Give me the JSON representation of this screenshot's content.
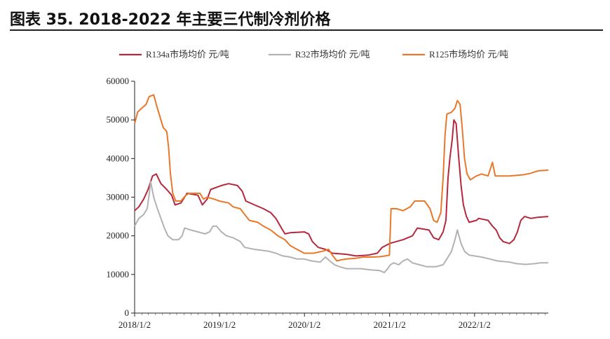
{
  "figure_title": "图表 35. 2018-2022 年主要三代制冷剂价格",
  "chart_data": {
    "type": "line",
    "xlim": [
      "2018-01-02",
      "2022-11-15"
    ],
    "ylim": [
      0,
      60000
    ],
    "yticks": [
      0,
      10000,
      20000,
      30000,
      40000,
      50000,
      60000
    ],
    "xticks": [
      {
        "label": "2018/1/2",
        "date": "2018-01-02"
      },
      {
        "label": "2019/1/2",
        "date": "2019-01-02"
      },
      {
        "label": "2020/1/2",
        "date": "2020-01-02"
      },
      {
        "label": "2021/1/2",
        "date": "2021-01-02"
      },
      {
        "label": "2022/1/2",
        "date": "2022-01-02"
      }
    ],
    "legend_position": "top",
    "grid": false,
    "series": [
      {
        "name": "R134a市场均价 元/吨",
        "color": "#b5283d",
        "points": [
          [
            "2018-01-02",
            26500
          ],
          [
            "2018-01-20",
            27500
          ],
          [
            "2018-02-10",
            29500
          ],
          [
            "2018-03-01",
            32000
          ],
          [
            "2018-03-20",
            35500
          ],
          [
            "2018-04-05",
            36000
          ],
          [
            "2018-04-25",
            33500
          ],
          [
            "2018-05-20",
            32000
          ],
          [
            "2018-06-10",
            30500
          ],
          [
            "2018-06-25",
            28000
          ],
          [
            "2018-07-20",
            28500
          ],
          [
            "2018-08-05",
            30000
          ],
          [
            "2018-08-15",
            31000
          ],
          [
            "2018-10-01",
            30500
          ],
          [
            "2018-10-20",
            28000
          ],
          [
            "2018-11-10",
            29500
          ],
          [
            "2018-11-25",
            32000
          ],
          [
            "2019-01-10",
            33000
          ],
          [
            "2019-02-10",
            33500
          ],
          [
            "2019-03-20",
            33000
          ],
          [
            "2019-04-10",
            31500
          ],
          [
            "2019-04-25",
            29000
          ],
          [
            "2019-06-01",
            28000
          ],
          [
            "2019-07-10",
            27000
          ],
          [
            "2019-08-10",
            26000
          ],
          [
            "2019-09-01",
            24500
          ],
          [
            "2019-09-25",
            22000
          ],
          [
            "2019-10-10",
            20500
          ],
          [
            "2019-11-01",
            20800
          ],
          [
            "2020-01-01",
            21000
          ],
          [
            "2020-01-20",
            20500
          ],
          [
            "2020-02-05",
            18500
          ],
          [
            "2020-03-01",
            17000
          ],
          [
            "2020-04-01",
            16500
          ],
          [
            "2020-05-01",
            15500
          ],
          [
            "2020-07-01",
            15200
          ],
          [
            "2020-08-10",
            14800
          ],
          [
            "2020-10-01",
            15000
          ],
          [
            "2020-11-10",
            15500
          ],
          [
            "2020-12-01",
            17000
          ],
          [
            "2021-01-01",
            18000
          ],
          [
            "2021-03-01",
            19000
          ],
          [
            "2021-04-10",
            20000
          ],
          [
            "2021-05-01",
            22000
          ],
          [
            "2021-06-20",
            21500
          ],
          [
            "2021-07-10",
            19500
          ],
          [
            "2021-08-01",
            19000
          ],
          [
            "2021-08-20",
            21000
          ],
          [
            "2021-09-01",
            24000
          ],
          [
            "2021-09-10",
            35000
          ],
          [
            "2021-09-18",
            40000
          ],
          [
            "2021-09-28",
            45000
          ],
          [
            "2021-10-05",
            50000
          ],
          [
            "2021-10-15",
            49000
          ],
          [
            "2021-10-25",
            41000
          ],
          [
            "2021-11-05",
            33000
          ],
          [
            "2021-11-15",
            28000
          ],
          [
            "2021-11-28",
            25000
          ],
          [
            "2021-12-10",
            23500
          ],
          [
            "2022-01-10",
            24000
          ],
          [
            "2022-01-20",
            24500
          ],
          [
            "2022-03-01",
            24000
          ],
          [
            "2022-03-20",
            22500
          ],
          [
            "2022-04-05",
            21500
          ],
          [
            "2022-04-20",
            19500
          ],
          [
            "2022-05-05",
            18500
          ],
          [
            "2022-06-01",
            18000
          ],
          [
            "2022-06-20",
            19000
          ],
          [
            "2022-07-05",
            21000
          ],
          [
            "2022-07-20",
            24000
          ],
          [
            "2022-08-05",
            25000
          ],
          [
            "2022-09-01",
            24500
          ],
          [
            "2022-10-01",
            24800
          ],
          [
            "2022-11-15",
            25000
          ]
        ]
      },
      {
        "name": "R32市场均价 元/吨",
        "color": "#b2b2b2",
        "points": [
          [
            "2018-01-02",
            22500
          ],
          [
            "2018-01-20",
            24500
          ],
          [
            "2018-02-10",
            25500
          ],
          [
            "2018-02-25",
            27000
          ],
          [
            "2018-03-05",
            30500
          ],
          [
            "2018-03-12",
            34000
          ],
          [
            "2018-03-25",
            30000
          ],
          [
            "2018-04-10",
            27000
          ],
          [
            "2018-04-25",
            24500
          ],
          [
            "2018-05-10",
            22000
          ],
          [
            "2018-05-25",
            20000
          ],
          [
            "2018-06-15",
            19000
          ],
          [
            "2018-07-10",
            19000
          ],
          [
            "2018-07-25",
            20000
          ],
          [
            "2018-08-05",
            22000
          ],
          [
            "2018-09-01",
            21500
          ],
          [
            "2018-10-01",
            21000
          ],
          [
            "2018-11-01",
            20500
          ],
          [
            "2018-11-20",
            21000
          ],
          [
            "2018-12-05",
            22500
          ],
          [
            "2018-12-20",
            22500
          ],
          [
            "2019-01-10",
            21000
          ],
          [
            "2019-02-01",
            20000
          ],
          [
            "2019-03-01",
            19500
          ],
          [
            "2019-04-01",
            18500
          ],
          [
            "2019-04-20",
            17000
          ],
          [
            "2019-06-01",
            16500
          ],
          [
            "2019-08-01",
            16000
          ],
          [
            "2019-09-01",
            15500
          ],
          [
            "2019-10-01",
            14800
          ],
          [
            "2019-11-01",
            14500
          ],
          [
            "2019-12-01",
            14000
          ],
          [
            "2020-01-01",
            14000
          ],
          [
            "2020-02-01",
            13500
          ],
          [
            "2020-03-10",
            13200
          ],
          [
            "2020-04-01",
            14500
          ],
          [
            "2020-04-20",
            13500
          ],
          [
            "2020-05-10",
            12500
          ],
          [
            "2020-06-01",
            12000
          ],
          [
            "2020-07-01",
            11500
          ],
          [
            "2020-09-01",
            11500
          ],
          [
            "2020-10-10",
            11200
          ],
          [
            "2020-11-20",
            11000
          ],
          [
            "2020-12-10",
            10500
          ],
          [
            "2020-12-25",
            11500
          ],
          [
            "2021-01-05",
            12500
          ],
          [
            "2021-01-20",
            13000
          ],
          [
            "2021-02-10",
            12500
          ],
          [
            "2021-03-01",
            13500
          ],
          [
            "2021-03-20",
            14000
          ],
          [
            "2021-04-10",
            13000
          ],
          [
            "2021-05-10",
            12500
          ],
          [
            "2021-06-10",
            12000
          ],
          [
            "2021-07-20",
            12000
          ],
          [
            "2021-08-20",
            12500
          ],
          [
            "2021-09-10",
            14500
          ],
          [
            "2021-09-25",
            16000
          ],
          [
            "2021-10-10",
            19000
          ],
          [
            "2021-10-20",
            21500
          ],
          [
            "2021-11-05",
            18000
          ],
          [
            "2021-11-20",
            16000
          ],
          [
            "2021-12-10",
            15000
          ],
          [
            "2022-02-01",
            14500
          ],
          [
            "2022-03-10",
            14000
          ],
          [
            "2022-04-10",
            13500
          ],
          [
            "2022-06-01",
            13200
          ],
          [
            "2022-07-01",
            12800
          ],
          [
            "2022-08-10",
            12600
          ],
          [
            "2022-09-20",
            12800
          ],
          [
            "2022-10-10",
            13000
          ],
          [
            "2022-11-15",
            13000
          ]
        ]
      },
      {
        "name": "R125市场均价 元/吨",
        "color": "#e8782a",
        "points": [
          [
            "2018-01-02",
            49000
          ],
          [
            "2018-01-15",
            52000
          ],
          [
            "2018-02-01",
            53000
          ],
          [
            "2018-02-20",
            54000
          ],
          [
            "2018-03-05",
            56000
          ],
          [
            "2018-03-25",
            56500
          ],
          [
            "2018-04-10",
            53000
          ],
          [
            "2018-04-25",
            50000
          ],
          [
            "2018-05-05",
            48000
          ],
          [
            "2018-05-20",
            47000
          ],
          [
            "2018-05-28",
            43000
          ],
          [
            "2018-06-05",
            36000
          ],
          [
            "2018-06-15",
            31000
          ],
          [
            "2018-06-28",
            29000
          ],
          [
            "2018-07-20",
            29000
          ],
          [
            "2018-08-10",
            30500
          ],
          [
            "2018-08-25",
            31000
          ],
          [
            "2018-10-10",
            31000
          ],
          [
            "2018-10-25",
            29500
          ],
          [
            "2018-11-10",
            30000
          ],
          [
            "2018-12-10",
            29500
          ],
          [
            "2019-01-01",
            29000
          ],
          [
            "2019-02-10",
            28500
          ],
          [
            "2019-03-01",
            27500
          ],
          [
            "2019-04-01",
            27000
          ],
          [
            "2019-04-20",
            25500
          ],
          [
            "2019-05-10",
            24000
          ],
          [
            "2019-06-15",
            23500
          ],
          [
            "2019-07-10",
            22500
          ],
          [
            "2019-08-10",
            21500
          ],
          [
            "2019-09-10",
            20000
          ],
          [
            "2019-10-10",
            19000
          ],
          [
            "2019-11-01",
            17500
          ],
          [
            "2019-12-01",
            16500
          ],
          [
            "2020-01-01",
            15500
          ],
          [
            "2020-02-10",
            15500
          ],
          [
            "2020-03-20",
            16000
          ],
          [
            "2020-04-15",
            16500
          ],
          [
            "2020-05-01",
            15000
          ],
          [
            "2020-05-20",
            13500
          ],
          [
            "2020-06-10",
            13800
          ],
          [
            "2020-07-01",
            14000
          ],
          [
            "2020-08-10",
            14200
          ],
          [
            "2020-09-10",
            14500
          ],
          [
            "2020-10-20",
            14500
          ],
          [
            "2020-11-20",
            14600
          ],
          [
            "2020-12-15",
            14800
          ],
          [
            "2021-01-01",
            15000
          ],
          [
            "2021-01-08",
            27000
          ],
          [
            "2021-02-01",
            27000
          ],
          [
            "2021-03-01",
            26500
          ],
          [
            "2021-04-01",
            27500
          ],
          [
            "2021-04-20",
            29000
          ],
          [
            "2021-06-01",
            29000
          ],
          [
            "2021-06-25",
            27000
          ],
          [
            "2021-07-10",
            24000
          ],
          [
            "2021-07-25",
            23500
          ],
          [
            "2021-08-10",
            26000
          ],
          [
            "2021-08-20",
            35000
          ],
          [
            "2021-08-28",
            46000
          ],
          [
            "2021-09-05",
            51500
          ],
          [
            "2021-09-25",
            52000
          ],
          [
            "2021-10-10",
            53000
          ],
          [
            "2021-10-20",
            55000
          ],
          [
            "2021-11-01",
            54000
          ],
          [
            "2021-11-10",
            48000
          ],
          [
            "2021-11-20",
            40000
          ],
          [
            "2021-12-01",
            36000
          ],
          [
            "2021-12-15",
            34500
          ],
          [
            "2022-01-10",
            35500
          ],
          [
            "2022-02-01",
            36000
          ],
          [
            "2022-03-01",
            35500
          ],
          [
            "2022-03-20",
            39000
          ],
          [
            "2022-04-01",
            35500
          ],
          [
            "2022-06-01",
            35500
          ],
          [
            "2022-08-01",
            35800
          ],
          [
            "2022-09-01",
            36200
          ],
          [
            "2022-10-01",
            36800
          ],
          [
            "2022-11-15",
            37000
          ]
        ]
      }
    ]
  }
}
